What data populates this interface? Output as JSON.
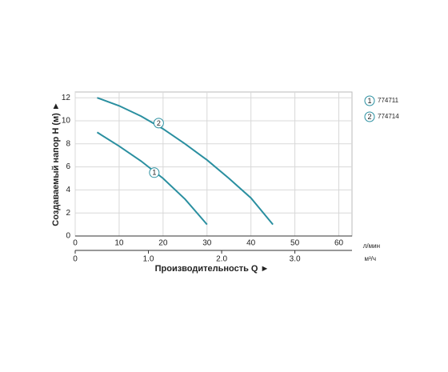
{
  "chart_data": {
    "type": "line",
    "ylabel": "Создаваемый напор H (м) ►",
    "xlabel": "Производительность Q ►",
    "xunit": "л/мин",
    "x2unit": "м³/ч",
    "xlim": [
      0,
      63
    ],
    "xticks": [
      0,
      10,
      20,
      30,
      40,
      50,
      60
    ],
    "x2lim": [
      0,
      3.78
    ],
    "x2ticks": [
      0,
      {
        "value": 1,
        "label": "1.0"
      },
      {
        "value": 2,
        "label": "2.0"
      },
      {
        "value": 3,
        "label": "3.0"
      }
    ],
    "ylim": [
      0,
      12.5
    ],
    "yticks": [
      0,
      2,
      4,
      6,
      8,
      10,
      12
    ],
    "grid": true,
    "series": [
      {
        "name": "774711",
        "marker_label": "1",
        "color": "#2a8fa0",
        "label_at": [
          18,
          5.5
        ],
        "x": [
          5,
          10,
          15,
          20,
          25,
          30
        ],
        "values": [
          9,
          7.8,
          6.5,
          5,
          3.2,
          1
        ]
      },
      {
        "name": "774714",
        "marker_label": "2",
        "color": "#2a8fa0",
        "label_at": [
          19,
          9.8
        ],
        "x": [
          5,
          10,
          15,
          20,
          25,
          30,
          35,
          40,
          45
        ],
        "values": [
          12,
          11.3,
          10.4,
          9.3,
          8,
          6.6,
          5,
          3.3,
          1
        ]
      }
    ]
  }
}
